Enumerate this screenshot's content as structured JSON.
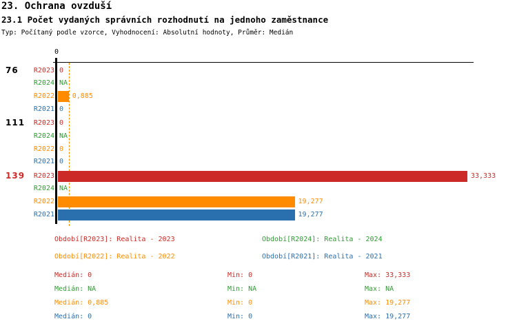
{
  "header": {
    "title": "23. Ochrana ovzduší",
    "subtitle": "23.1 Počet vydaných správních rozhodnutí na jednoho zaměstnance",
    "meta": "Typ: Počítaný podle vzorce, Vyhodnocení: Absolutní hodnoty, Průměr: Medián"
  },
  "colors": {
    "R2023": "#CB2A26",
    "R2024": "#2E9B32",
    "R2022": "#FF8C00",
    "R2021": "#2A70AE",
    "axis": "#000000",
    "group_label": "#000000",
    "group_label_highlight": "#CB2A26"
  },
  "chart_data": {
    "type": "bar",
    "orientation": "horizontal",
    "title": "23.1 Počet vydaných správních rozhodnutí na jednoho zaměstnance",
    "xlim": [
      0,
      33.333
    ],
    "axis_tick_labels": [
      "0"
    ],
    "grid": false,
    "median_line": {
      "series": "R2022",
      "value": 0.885
    },
    "series_names": [
      "R2023",
      "R2024",
      "R2022",
      "R2021"
    ],
    "groups": [
      {
        "label": "76",
        "highlight": false,
        "rows": [
          {
            "series": "R2023",
            "value": 0,
            "display": "0"
          },
          {
            "series": "R2024",
            "value": null,
            "display": "NA"
          },
          {
            "series": "R2022",
            "value": 0.885,
            "display": "0,885"
          },
          {
            "series": "R2021",
            "value": 0,
            "display": "0"
          }
        ]
      },
      {
        "label": "111",
        "highlight": false,
        "rows": [
          {
            "series": "R2023",
            "value": 0,
            "display": "0"
          },
          {
            "series": "R2024",
            "value": null,
            "display": "NA"
          },
          {
            "series": "R2022",
            "value": 0,
            "display": "0"
          },
          {
            "series": "R2021",
            "value": 0,
            "display": "0"
          }
        ]
      },
      {
        "label": "139",
        "highlight": true,
        "rows": [
          {
            "series": "R2023",
            "value": 33.333,
            "display": "33,333"
          },
          {
            "series": "R2024",
            "value": null,
            "display": "NA"
          },
          {
            "series": "R2022",
            "value": 19.277,
            "display": "19,277"
          },
          {
            "series": "R2021",
            "value": 19.277,
            "display": "19,277"
          }
        ]
      }
    ]
  },
  "legend": {
    "items": [
      {
        "series": "R2023",
        "label": "Období[R2023]: Realita - 2023"
      },
      {
        "series": "R2024",
        "label": "Období[R2024]: Realita - 2024"
      },
      {
        "series": "R2022",
        "label": "Období[R2022]: Realita - 2022"
      },
      {
        "series": "R2021",
        "label": "Období[R2021]: Realita - 2021"
      }
    ]
  },
  "stats": {
    "rows": [
      {
        "series": "R2023",
        "median": "Medián: 0",
        "min": "Min: 0",
        "max": "Max: 33,333"
      },
      {
        "series": "R2024",
        "median": "Medián: NA",
        "min": "Min: NA",
        "max": "Max: NA"
      },
      {
        "series": "R2022",
        "median": "Medián: 0,885",
        "min": "Min: 0",
        "max": "Max: 19,277"
      },
      {
        "series": "R2021",
        "median": "Medián: 0",
        "min": "Min: 0",
        "max": "Max: 19,277"
      }
    ]
  }
}
